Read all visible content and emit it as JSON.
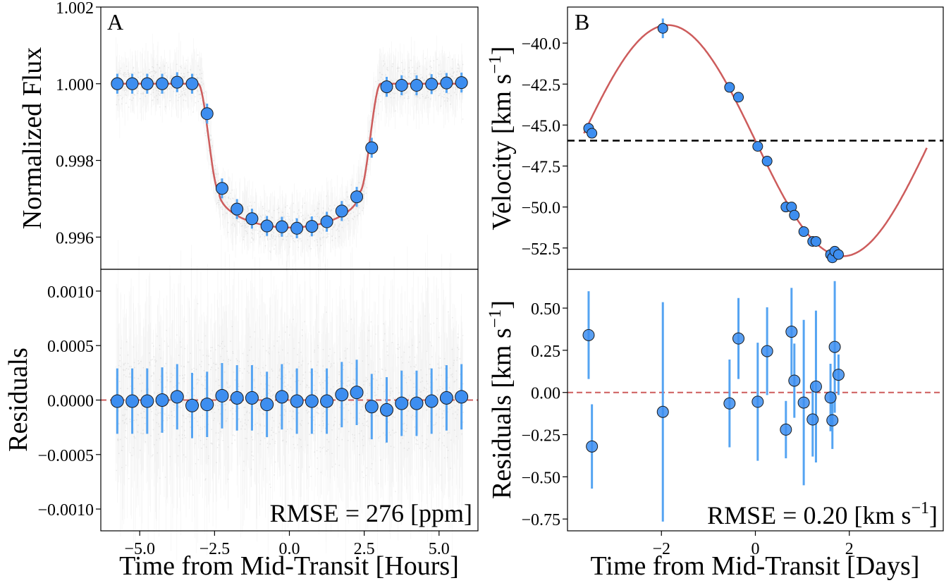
{
  "figure": {
    "rmse_left": "RMSE = 276 [ppm]",
    "rmse_right_prefix": "RMSE = 0.20 [km s",
    "rmse_right_sup": "−1",
    "rmse_right_suffix": "]"
  },
  "chart_data": [
    {
      "id": "A-top",
      "panel_label": "A",
      "type": "scatter",
      "ylabel": "Normalized Flux",
      "xlim": [
        -6.3,
        6.3
      ],
      "ylim": [
        0.99516,
        1.002
      ],
      "yticks": [
        0.996,
        0.998,
        1.0,
        1.002
      ],
      "ytick_labels": [
        "0.996",
        "0.998",
        "1.000",
        "1.002"
      ],
      "colors": {
        "points": "#3d8ef0",
        "errorbars": "#55a4f2",
        "model": "#cd5c5c"
      },
      "model": {
        "name": "",
        "depth": 0.00375,
        "t1": 3.05,
        "t2": 2.35
      },
      "series": [
        {
          "name": "",
          "x": [
            -5.75,
            -5.25,
            -4.75,
            -4.25,
            -3.75,
            -3.25,
            -2.75,
            -2.25,
            -1.75,
            -1.25,
            -0.75,
            -0.25,
            0.25,
            0.75,
            1.25,
            1.75,
            2.25,
            2.75,
            3.25,
            3.75,
            4.25,
            4.75,
            5.25,
            5.75
          ],
          "y": [
            1.0,
            1.0,
            1.0,
            1.0,
            1.00004,
            1.0,
            0.99922,
            0.99727,
            0.99673,
            0.99648,
            0.99629,
            0.99627,
            0.99623,
            0.99628,
            0.9964,
            0.99668,
            0.99705,
            0.99833,
            0.99992,
            0.99996,
            0.99996,
            0.99999,
            1.00002,
            1.00003
          ],
          "yerr": 0.00026
        }
      ]
    },
    {
      "id": "A-bottom",
      "type": "scatter",
      "xlabel": "Time from Mid-Transit [Hours]",
      "ylabel": "Residuals",
      "xlim": [
        -6.3,
        6.3
      ],
      "ylim": [
        -0.0012,
        0.0012
      ],
      "xticks": [
        -5,
        -2.5,
        0,
        2.5,
        5
      ],
      "xtick_labels": [
        "−5.0",
        "−2.5",
        "0.0",
        "2.5",
        "5.0"
      ],
      "yticks": [
        -0.001,
        -0.0005,
        0,
        0.0005,
        0.001
      ],
      "ytick_labels": [
        "−0.0010",
        "−0.0005",
        "0.0000",
        "0.0005",
        "0.0010"
      ],
      "zero_line": "dashed",
      "series": [
        {
          "name": "",
          "x": [
            -5.75,
            -5.25,
            -4.75,
            -4.25,
            -3.75,
            -3.25,
            -2.75,
            -2.25,
            -1.75,
            -1.25,
            -0.75,
            -0.25,
            0.25,
            0.75,
            1.25,
            1.75,
            2.25,
            2.75,
            3.25,
            3.75,
            4.25,
            4.75,
            5.25,
            5.75
          ],
          "y": [
            -1e-05,
            -1e-05,
            -1e-05,
            0.0,
            3e-05,
            -5e-05,
            -4e-05,
            4e-05,
            2e-05,
            2e-05,
            -4e-05,
            3e-05,
            -1e-05,
            -1e-05,
            -1e-05,
            5e-05,
            7e-05,
            -6e-05,
            -9e-05,
            -3e-05,
            -3e-05,
            -1e-05,
            2e-05,
            3e-05
          ],
          "yerr": 0.0003
        }
      ]
    },
    {
      "id": "B-top",
      "panel_label": "B",
      "type": "scatter",
      "ylabel": "Velocity [km s",
      "ylabel_sup": "−1",
      "ylabel_suffix": "]",
      "xlim": [
        -4.0,
        4.0
      ],
      "ylim": [
        -53.8,
        -37.8
      ],
      "yticks": [
        -52.5,
        -50,
        -47.5,
        -45,
        -42.5,
        -40
      ],
      "ytick_labels": [
        "−52.5",
        "−50.0",
        "−47.5",
        "−45.0",
        "−42.5",
        "−40.0"
      ],
      "systemic_velocity": -45.95,
      "model": {
        "name": "",
        "gamma": -45.95,
        "K": 7.05,
        "period": 7.45,
        "t_zero": 0.0,
        "x_range": [
          -3.65,
          3.65
        ]
      },
      "series": [
        {
          "name": "",
          "x": [
            -3.55,
            -3.48,
            -1.97,
            -0.55,
            -0.36,
            0.05,
            0.25,
            0.65,
            0.77,
            0.83,
            1.03,
            1.22,
            1.29,
            1.6,
            1.64,
            1.69,
            1.77
          ],
          "y": [
            -45.2,
            -45.5,
            -39.1,
            -42.7,
            -43.3,
            -46.3,
            -47.2,
            -50.0,
            -50.0,
            -50.5,
            -51.5,
            -52.1,
            -52.1,
            -52.9,
            -53.1,
            -52.7,
            -52.9
          ],
          "yerr": [
            0.3,
            0.3,
            0.6,
            0.2,
            0.2,
            0.3,
            0.2,
            0.3,
            0.2,
            0.2,
            0.3,
            0.2,
            0.2,
            0.2,
            0.2,
            0.3,
            0.2
          ]
        }
      ]
    },
    {
      "id": "B-bottom",
      "type": "scatter",
      "xlabel": "Time from Mid-Transit [Days]",
      "ylabel": "Residuals [km s",
      "ylabel_sup": "−1",
      "ylabel_suffix": "]",
      "xlim": [
        -4.0,
        4.0
      ],
      "ylim": [
        -0.82,
        0.73
      ],
      "xticks": [
        -2,
        0,
        2
      ],
      "xtick_labels": [
        "−2",
        "0",
        "2"
      ],
      "yticks": [
        -0.75,
        -0.5,
        -0.25,
        0,
        0.25,
        0.5
      ],
      "ytick_labels": [
        "−0.75",
        "−0.50",
        "−0.25",
        "0.00",
        "0.25",
        "0.50"
      ],
      "zero_line": "dashed",
      "series": [
        {
          "name": "",
          "x": [
            -3.55,
            -3.48,
            -1.97,
            -0.55,
            -0.36,
            0.05,
            0.25,
            0.65,
            0.77,
            0.83,
            1.03,
            1.22,
            1.29,
            1.6,
            1.64,
            1.69,
            1.77
          ],
          "y": [
            0.34,
            -0.32,
            -0.115,
            -0.065,
            0.32,
            -0.055,
            0.245,
            -0.22,
            0.36,
            0.07,
            -0.06,
            -0.16,
            0.035,
            -0.03,
            -0.165,
            0.27,
            0.105
          ],
          "yerr": [
            0.26,
            0.25,
            0.65,
            0.26,
            0.24,
            0.35,
            0.26,
            0.17,
            0.26,
            0.22,
            0.49,
            0.22,
            0.45,
            0.2,
            0.17,
            0.39,
            0.12
          ]
        }
      ]
    }
  ]
}
